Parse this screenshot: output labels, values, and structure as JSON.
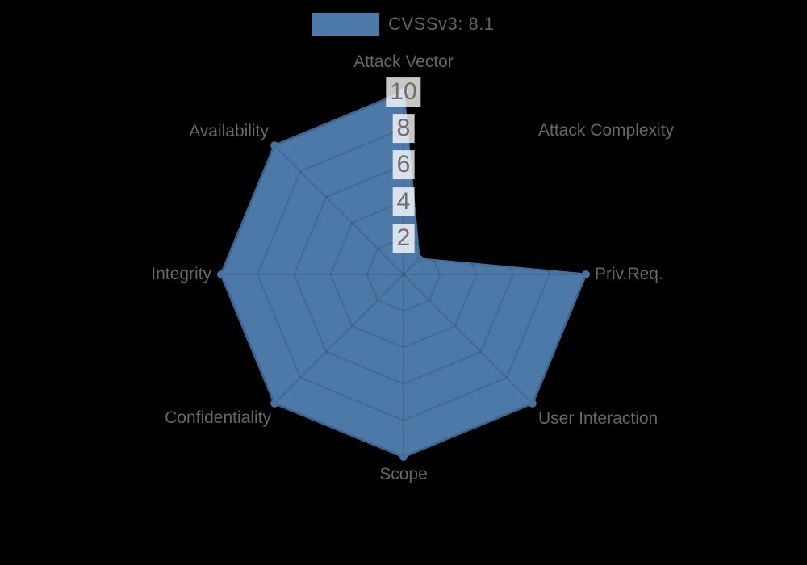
{
  "chart_data": {
    "type": "radar",
    "title": "",
    "legend": {
      "label": "CVSSv3: 8.1",
      "position": "top"
    },
    "categories": [
      "Attack Vector",
      "Attack Complexity",
      "Priv.Req.",
      "User Interaction",
      "Scope",
      "Confidentiality",
      "Integrity",
      "Availability"
    ],
    "series": [
      {
        "name": "CVSSv3: 8.1",
        "values": [
          10,
          1.2,
          10,
          10,
          10,
          10,
          10,
          10
        ]
      }
    ],
    "radial_axis": {
      "min": 0,
      "max": 10,
      "tick_step": 2,
      "ticks": [
        2,
        4,
        6,
        8,
        10
      ]
    },
    "layout_hints": {
      "start_axis": "top",
      "direction": "clockwise",
      "grid": "on",
      "grid_over_fill": true,
      "background": "black"
    },
    "colors": {
      "background": "#000000",
      "series_fill": "#4d79a8",
      "series_stroke": "#45719f",
      "grid_line": "rgba(0,0,0,0.12)",
      "tick_text": "#6e6e6e",
      "tick_backdrop": "rgba(255,255,255,0.78)",
      "label_text": "#666666",
      "legend_text": "#636363"
    }
  }
}
